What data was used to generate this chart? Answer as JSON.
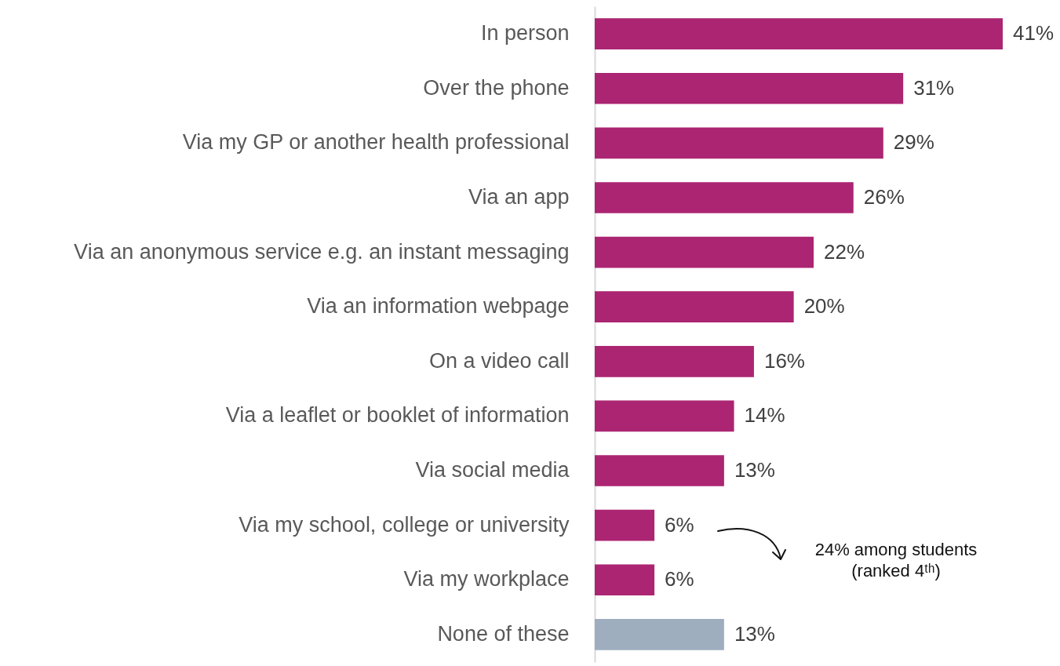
{
  "chart_data": {
    "type": "bar",
    "orientation": "horizontal",
    "categories": [
      "In person",
      "Over the phone",
      "Via my GP or another health professional",
      "Via an app",
      "Via an anonymous service e.g. an instant messaging",
      "Via an information webpage",
      "On a video call",
      "Via a leaflet or booklet of information",
      "Via social media",
      "Via my school, college or university",
      "Via my workplace",
      "None of these"
    ],
    "values": [
      41,
      31,
      29,
      26,
      22,
      20,
      16,
      14,
      13,
      6,
      6,
      13
    ],
    "value_labels": [
      "41%",
      "31%",
      "29%",
      "26%",
      "22%",
      "20%",
      "16%",
      "14%",
      "13%",
      "6%",
      "6%",
      "13%"
    ],
    "colors": [
      "#ab2572",
      "#ab2572",
      "#ab2572",
      "#ab2572",
      "#ab2572",
      "#ab2572",
      "#ab2572",
      "#ab2572",
      "#ab2572",
      "#ab2572",
      "#ab2572",
      "#9eaebe"
    ],
    "annotations": [
      "24% among students\n(ranked 4ᵗʰ)"
    ]
  }
}
